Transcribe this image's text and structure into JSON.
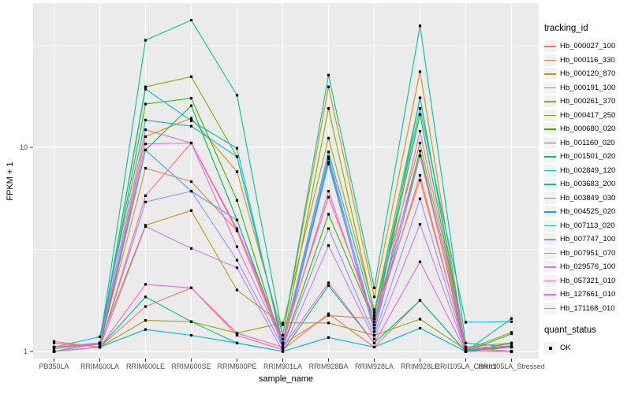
{
  "legend": {
    "tracking_title": "tracking_id",
    "quant_title": "quant_status",
    "quant_label": "OK"
  },
  "colors": {
    "panel_bg": "#EBEBEB",
    "grid_major": "#FFFFFF",
    "grid_minor": "#F7F7F7",
    "tick_text": "#4D4D4D",
    "axis_title": "#000000",
    "marker": "#000000",
    "tick_mark": "#333333"
  },
  "chart_data": {
    "type": "line",
    "title": "",
    "xlabel": "sample_name",
    "ylabel": "FPKM + 1",
    "y_scale": "log10",
    "ylim": [
      0.92,
      49
    ],
    "y_ticks": [
      1,
      10
    ],
    "y_tick_labels": [
      "1",
      "10"
    ],
    "grid": true,
    "legend_position": "right",
    "point_marker": "black-square",
    "categories": [
      "PB350LA",
      "RRIM600LA",
      "RRIM600LE",
      "RRIM600SE",
      "RRIM600PE",
      "RRIM901LA",
      "RRIM928BA",
      "RRIM928LA",
      "RRIM928LE",
      "RRII105LA_Control",
      "RRII105LA_Stressed"
    ],
    "series": [
      {
        "name": "Hb_000027_100",
        "color": "#F8766D",
        "values": [
          1.12,
          1.05,
          1.66,
          2.05,
          1.2,
          1.02,
          1.53,
          1.05,
          1.78,
          1.0,
          1.0
        ]
      },
      {
        "name": "Hb_000116_330",
        "color": "#EA8331",
        "values": [
          1.05,
          1.08,
          7.9,
          6.8,
          3.9,
          1.08,
          1.5,
          1.45,
          6.9,
          1.03,
          1.0
        ]
      },
      {
        "name": "Hb_000120_870",
        "color": "#D89000",
        "values": [
          1.0,
          1.05,
          11.3,
          13.9,
          7.6,
          1.2,
          19.8,
          1.85,
          23.5,
          1.02,
          1.05
        ]
      },
      {
        "name": "Hb_000191_100",
        "color": "#C09B00",
        "values": [
          1.03,
          1.1,
          4.15,
          4.9,
          2.0,
          1.35,
          11.1,
          1.6,
          10.5,
          1.05,
          1.1
        ]
      },
      {
        "name": "Hb_000261_370",
        "color": "#A3A500",
        "values": [
          1.0,
          1.05,
          1.42,
          1.4,
          1.23,
          1.38,
          1.38,
          1.2,
          1.44,
          1.02,
          1.24
        ]
      },
      {
        "name": "Hb_000417_250",
        "color": "#7CAE00",
        "values": [
          1.0,
          1.1,
          19.8,
          22.2,
          9.0,
          1.1,
          15.5,
          1.55,
          17.5,
          1.05,
          1.05
        ]
      },
      {
        "name": "Hb_000680_020",
        "color": "#39B600",
        "values": [
          1.05,
          1.1,
          16.3,
          17.4,
          5.5,
          1.05,
          4.7,
          1.4,
          14.5,
          1.0,
          1.05
        ]
      },
      {
        "name": "Hb_001160_020",
        "color": "#00BB4E",
        "values": [
          1.0,
          1.05,
          9.7,
          16.0,
          4.4,
          1.1,
          8.5,
          1.35,
          9.6,
          1.0,
          1.1
        ]
      },
      {
        "name": "Hb_001501_020",
        "color": "#00BF7D",
        "values": [
          1.0,
          1.05,
          1.85,
          1.4,
          1.1,
          1.0,
          2.1,
          1.1,
          1.78,
          1.0,
          1.22
        ]
      },
      {
        "name": "Hb_002849_120",
        "color": "#00C1A3",
        "values": [
          1.05,
          1.1,
          33.5,
          42.0,
          18.0,
          1.2,
          22.6,
          2.05,
          39.4,
          1.1,
          1.05
        ]
      },
      {
        "name": "Hb_003683_200",
        "color": "#00BFC4",
        "values": [
          1.0,
          1.1,
          19.3,
          13.5,
          9.9,
          1.05,
          9.0,
          1.3,
          17.5,
          1.0,
          1.45
        ]
      },
      {
        "name": "Hb_003849_030",
        "color": "#00BAE0",
        "values": [
          1.05,
          1.18,
          13.6,
          12.7,
          9.0,
          1.1,
          9.5,
          1.5,
          15.5,
          1.39,
          1.4
        ]
      },
      {
        "name": "Hb_004525_020",
        "color": "#00B0F6",
        "values": [
          1.0,
          1.05,
          1.28,
          1.2,
          1.1,
          1.0,
          1.17,
          1.05,
          1.3,
          1.0,
          1.07
        ]
      },
      {
        "name": "Hb_007113_020",
        "color": "#35A2FF",
        "values": [
          1.0,
          1.1,
          9.7,
          6.1,
          4.4,
          1.05,
          8.3,
          1.25,
          9.1,
          1.05,
          1.0
        ]
      },
      {
        "name": "Hb_007747_100",
        "color": "#9590FF",
        "values": [
          1.0,
          1.05,
          5.4,
          6.1,
          2.8,
          1.05,
          4.0,
          1.2,
          5.6,
          1.0,
          1.0
        ]
      },
      {
        "name": "Hb_007951_070",
        "color": "#C77CFF",
        "values": [
          1.0,
          1.05,
          4.1,
          3.2,
          2.57,
          1.0,
          3.3,
          1.15,
          4.2,
          1.0,
          1.0
        ]
      },
      {
        "name": "Hb_029576_100",
        "color": "#E76BF3",
        "values": [
          1.05,
          1.1,
          10.4,
          10.5,
          3.26,
          1.1,
          8.8,
          1.3,
          12.0,
          1.05,
          1.0
        ]
      },
      {
        "name": "Hb_057321_010",
        "color": "#FA62DB",
        "values": [
          1.0,
          1.05,
          2.13,
          2.05,
          1.23,
          1.05,
          2.17,
          1.1,
          2.75,
          1.0,
          1.0
        ]
      },
      {
        "name": "Hb_127661_010",
        "color": "#FF62BC",
        "values": [
          1.05,
          1.1,
          12.2,
          10.5,
          4.0,
          1.15,
          5.7,
          1.45,
          9.1,
          1.05,
          1.05
        ]
      },
      {
        "name": "Hb_171168_010",
        "color": "#FF6A98",
        "values": [
          1.1,
          1.05,
          5.8,
          10.5,
          3.9,
          1.1,
          6.1,
          1.35,
          7.3,
          1.0,
          1.0
        ]
      }
    ]
  }
}
